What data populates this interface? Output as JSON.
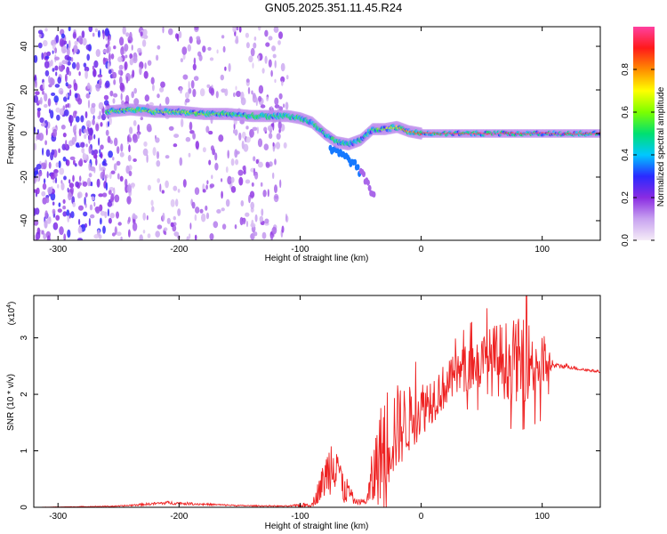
{
  "figure": {
    "title": "GN05.2025.351.11.45.R24"
  },
  "colors": {
    "axis": "#000000",
    "snr_line": "#ee2222",
    "background": "#ffffff",
    "noise": "#8a3cf0",
    "colorbar_stops": [
      "#f5ecf7",
      "#c8a2f0",
      "#8a2be2",
      "#2a2aff",
      "#00c8ff",
      "#00e070",
      "#7cff00",
      "#ffff00",
      "#ff8c00",
      "#ff1a1a",
      "#ff40a0"
    ]
  },
  "chart_data": [
    {
      "type": "heatmap",
      "xlabel": "Height of straight line (km)",
      "ylabel": "Frequency (Hz)",
      "xlim": [
        -320,
        148
      ],
      "ylim": [
        -49,
        49
      ],
      "xticks": [
        -300,
        -200,
        -100,
        0,
        100
      ],
      "xtick_labels": [
        "-300",
        "-200",
        "-100",
        "0",
        "100"
      ],
      "yticks": [
        -40,
        -20,
        0,
        20,
        40
      ],
      "ytick_labels": [
        "-40",
        "-20",
        "0",
        "20",
        "40"
      ],
      "colorbar": {
        "label": "Normalized spectral amplitude",
        "range": [
          0,
          1
        ],
        "ticks": [
          0.0,
          0.2,
          0.4,
          0.6,
          0.8
        ],
        "tick_labels": [
          "0.0",
          "0.2",
          "0.4",
          "0.6",
          "0.8"
        ]
      },
      "ridge": {
        "description": "dominant frequency vs height",
        "x": [
          -260,
          -240,
          -220,
          -200,
          -180,
          -160,
          -140,
          -120,
          -110,
          -100,
          -90,
          -80,
          -70,
          -60,
          -50,
          -40,
          -30,
          -20,
          -10,
          0,
          20,
          50,
          100,
          148
        ],
        "freq": [
          10,
          11,
          10,
          10,
          9,
          9,
          8,
          8,
          8,
          7,
          5,
          0,
          -4,
          -5,
          -3,
          2,
          2,
          3,
          1,
          0,
          0,
          0,
          0,
          0
        ],
        "amplitude": [
          0.55,
          0.6,
          0.62,
          0.6,
          0.58,
          0.55,
          0.5,
          0.5,
          0.48,
          0.45,
          0.4,
          0.45,
          0.5,
          0.45,
          0.4,
          0.55,
          0.6,
          0.7,
          0.8,
          0.85,
          0.9,
          0.95,
          0.95,
          0.9
        ]
      },
      "noise_region": {
        "x_range": [
          -320,
          -110
        ],
        "amplitude_range": [
          0.05,
          0.3
        ]
      }
    },
    {
      "type": "line",
      "xlabel": "Height of straight line (km)",
      "ylabel": "SNR (10 * v/v)",
      "scale_label": "(x10",
      "scale_exponent": "4",
      "scale_close": ")",
      "xlim": [
        -320,
        148
      ],
      "ylim": [
        0,
        3.75
      ],
      "xticks": [
        -300,
        -200,
        -100,
        0,
        100
      ],
      "xtick_labels": [
        "-300",
        "-200",
        "-100",
        "0",
        "100"
      ],
      "yticks": [
        0,
        1,
        2,
        3
      ],
      "ytick_labels": [
        "0",
        "1",
        "2",
        "3"
      ],
      "series": [
        {
          "name": "SNR",
          "envelope_x": [
            -320,
            -250,
            -230,
            -210,
            -150,
            -110,
            -90,
            -80,
            -70,
            -65,
            -60,
            -55,
            -45,
            -40,
            -30,
            -20,
            -10,
            0,
            10,
            20,
            30,
            40,
            50,
            60,
            70,
            80,
            90,
            100,
            110,
            120,
            130,
            148
          ],
          "envelope_mid": [
            0.0,
            0.02,
            0.05,
            0.08,
            0.03,
            0.02,
            0.05,
            0.5,
            1.0,
            0.3,
            0.3,
            0.1,
            0.1,
            0.5,
            1.2,
            1.4,
            1.55,
            1.75,
            1.95,
            2.15,
            2.35,
            2.5,
            2.55,
            2.6,
            2.6,
            2.6,
            2.6,
            2.55,
            2.5,
            2.5,
            2.45,
            2.4
          ],
          "envelope_amp": [
            0.0,
            0.01,
            0.02,
            0.03,
            0.01,
            0.01,
            0.05,
            0.35,
            0.7,
            0.3,
            0.2,
            0.05,
            0.05,
            0.6,
            1.0,
            0.8,
            0.6,
            0.5,
            0.45,
            0.4,
            0.4,
            0.45,
            0.5,
            0.65,
            0.7,
            0.75,
            0.7,
            0.6,
            0.05,
            0.04,
            0.03,
            0.02
          ]
        }
      ]
    }
  ]
}
